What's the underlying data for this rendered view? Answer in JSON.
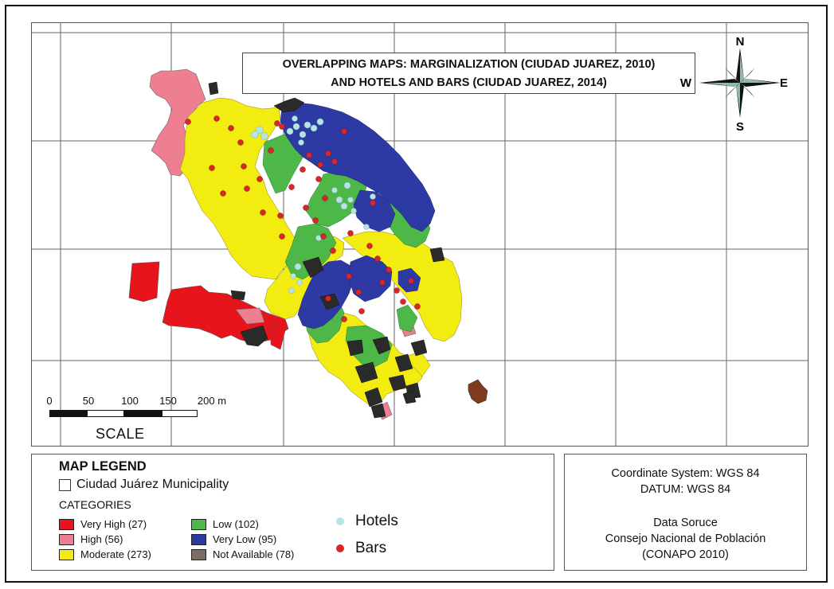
{
  "title": {
    "line1": "OVERLAPPING MAPS: MARGINALIZATION (CIUDAD JUAREZ, 2010)",
    "line2": "AND HOTELS AND BARS (CIUDAD JUAREZ, 2014)"
  },
  "compass": {
    "n": "N",
    "s": "S",
    "e": "E",
    "w": "W"
  },
  "scale": {
    "ticks": [
      "0",
      "50",
      "100",
      "150",
      "200 m"
    ],
    "label": "SCALE"
  },
  "legend": {
    "heading": "MAP LEGEND",
    "municipality": "Ciudad Juárez Municipality",
    "categories_label": "CATEGORIES",
    "categories": [
      {
        "label": "Very High (27)",
        "color": "#e8141c"
      },
      {
        "label": "High (56)",
        "color": "#ee7f90"
      },
      {
        "label": "Moderate (273)",
        "color": "#f2ec10"
      },
      {
        "label": "Low (102)",
        "color": "#4db848"
      },
      {
        "label": "Very Low (95)",
        "color": "#2e3aa3"
      },
      {
        "label": "Not Available (78)",
        "color": "#7d6c66"
      }
    ],
    "points": [
      {
        "label": "Hotels",
        "color": "#b8e3e4"
      },
      {
        "label": "Bars",
        "color": "#d8262a"
      }
    ]
  },
  "info": {
    "coord_system": "Coordinate System: WGS 84",
    "datum": "DATUM: WGS 84",
    "source_heading": "Data Soruce",
    "source_line1": "Consejo Nacional de Población",
    "source_line2": "(CONAPO 2010)"
  }
}
